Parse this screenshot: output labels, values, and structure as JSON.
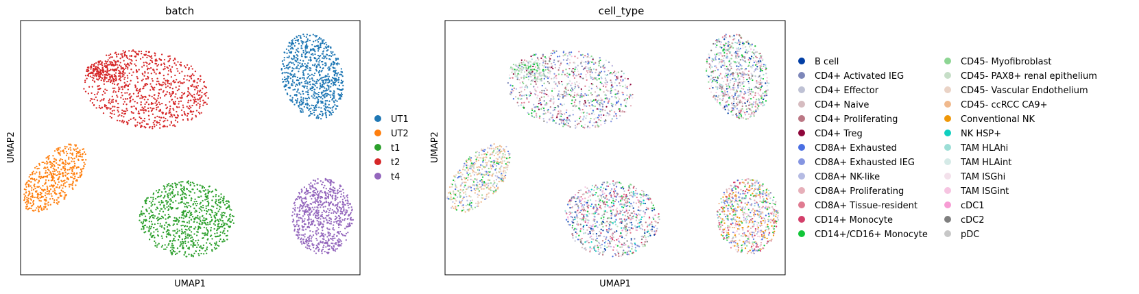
{
  "chart_data": [
    {
      "type": "scatter",
      "title": "batch",
      "xlabel": "UMAP1",
      "ylabel": "UMAP2",
      "xlim": [
        0,
        100
      ],
      "ylim": [
        0,
        100
      ],
      "grid": false,
      "legend_placement": "right",
      "legend_columns": 1,
      "series": [
        {
          "name": "UT1",
          "color": "#1f77b4"
        },
        {
          "name": "UT2",
          "color": "#ff7f0e"
        },
        {
          "name": "t1",
          "color": "#2ca02c"
        },
        {
          "name": "t2",
          "color": "#d62728"
        },
        {
          "name": "t4",
          "color": "#9467bd"
        }
      ],
      "clusters": [
        {
          "series": "t2",
          "cx": 37,
          "cy": 73,
          "rx": 19,
          "ry": 15,
          "tilt": -20,
          "n": 900
        },
        {
          "series": "t2",
          "cx": 25,
          "cy": 80,
          "rx": 6,
          "ry": 4,
          "tilt": -10,
          "n": 160
        },
        {
          "series": "UT1",
          "cx": 86,
          "cy": 78,
          "rx": 9,
          "ry": 17,
          "tilt": 8,
          "n": 800
        },
        {
          "series": "UT2",
          "cx": 10,
          "cy": 38,
          "rx": 7,
          "ry": 15,
          "tilt": -28,
          "n": 520
        },
        {
          "series": "t1",
          "cx": 49,
          "cy": 22,
          "rx": 14,
          "ry": 15,
          "tilt": 10,
          "n": 850
        },
        {
          "series": "t4",
          "cx": 89,
          "cy": 23,
          "rx": 9,
          "ry": 15,
          "tilt": 0,
          "n": 750
        }
      ]
    },
    {
      "type": "scatter",
      "title": "cell_type",
      "xlabel": "UMAP1",
      "ylabel": "UMAP2",
      "xlim": [
        0,
        100
      ],
      "ylim": [
        0,
        100
      ],
      "grid": false,
      "legend_placement": "right",
      "legend_columns": 2,
      "series": [
        {
          "name": "B cell",
          "color": "#023fa5"
        },
        {
          "name": "CD4+ Activated IEG",
          "color": "#7d87b9"
        },
        {
          "name": "CD4+ Effector",
          "color": "#bec1d4"
        },
        {
          "name": "CD4+ Naive",
          "color": "#d6bcc0"
        },
        {
          "name": "CD4+ Proliferating",
          "color": "#bb7784"
        },
        {
          "name": "CD4+ Treg",
          "color": "#8e063b"
        },
        {
          "name": "CD8A+ Exhausted",
          "color": "#4a6fe3"
        },
        {
          "name": "CD8A+ Exhausted IEG",
          "color": "#8595e1"
        },
        {
          "name": "CD8A+ NK-like",
          "color": "#b5bbe3"
        },
        {
          "name": "CD8A+ Proliferating",
          "color": "#e6afb9"
        },
        {
          "name": "CD8A+ Tissue-resident",
          "color": "#e07b91"
        },
        {
          "name": "CD14+ Monocyte",
          "color": "#d33f6a"
        },
        {
          "name": "CD14+/CD16+ Monocyte",
          "color": "#11c638"
        },
        {
          "name": "CD45- Myofibroblast",
          "color": "#8dd593"
        },
        {
          "name": "CD45- PAX8+ renal epithelium",
          "color": "#c6dec7"
        },
        {
          "name": "CD45- Vascular Endothelium",
          "color": "#ead3c6"
        },
        {
          "name": "CD45- ccRCC CA9+",
          "color": "#f0b98d"
        },
        {
          "name": "Conventional NK",
          "color": "#ef9708"
        },
        {
          "name": "NK HSP+",
          "color": "#0fcfc0"
        },
        {
          "name": "TAM HLAhi",
          "color": "#9cded6"
        },
        {
          "name": "TAM HLAint",
          "color": "#d5eae7"
        },
        {
          "name": "TAM ISGhi",
          "color": "#f3e1eb"
        },
        {
          "name": "TAM ISGint",
          "color": "#f6c4e1"
        },
        {
          "name": "cDC1",
          "color": "#f79cd4"
        },
        {
          "name": "cDC2",
          "color": "#7f7f7f"
        },
        {
          "name": "pDC",
          "color": "#c7c7c7"
        }
      ]
    }
  ]
}
